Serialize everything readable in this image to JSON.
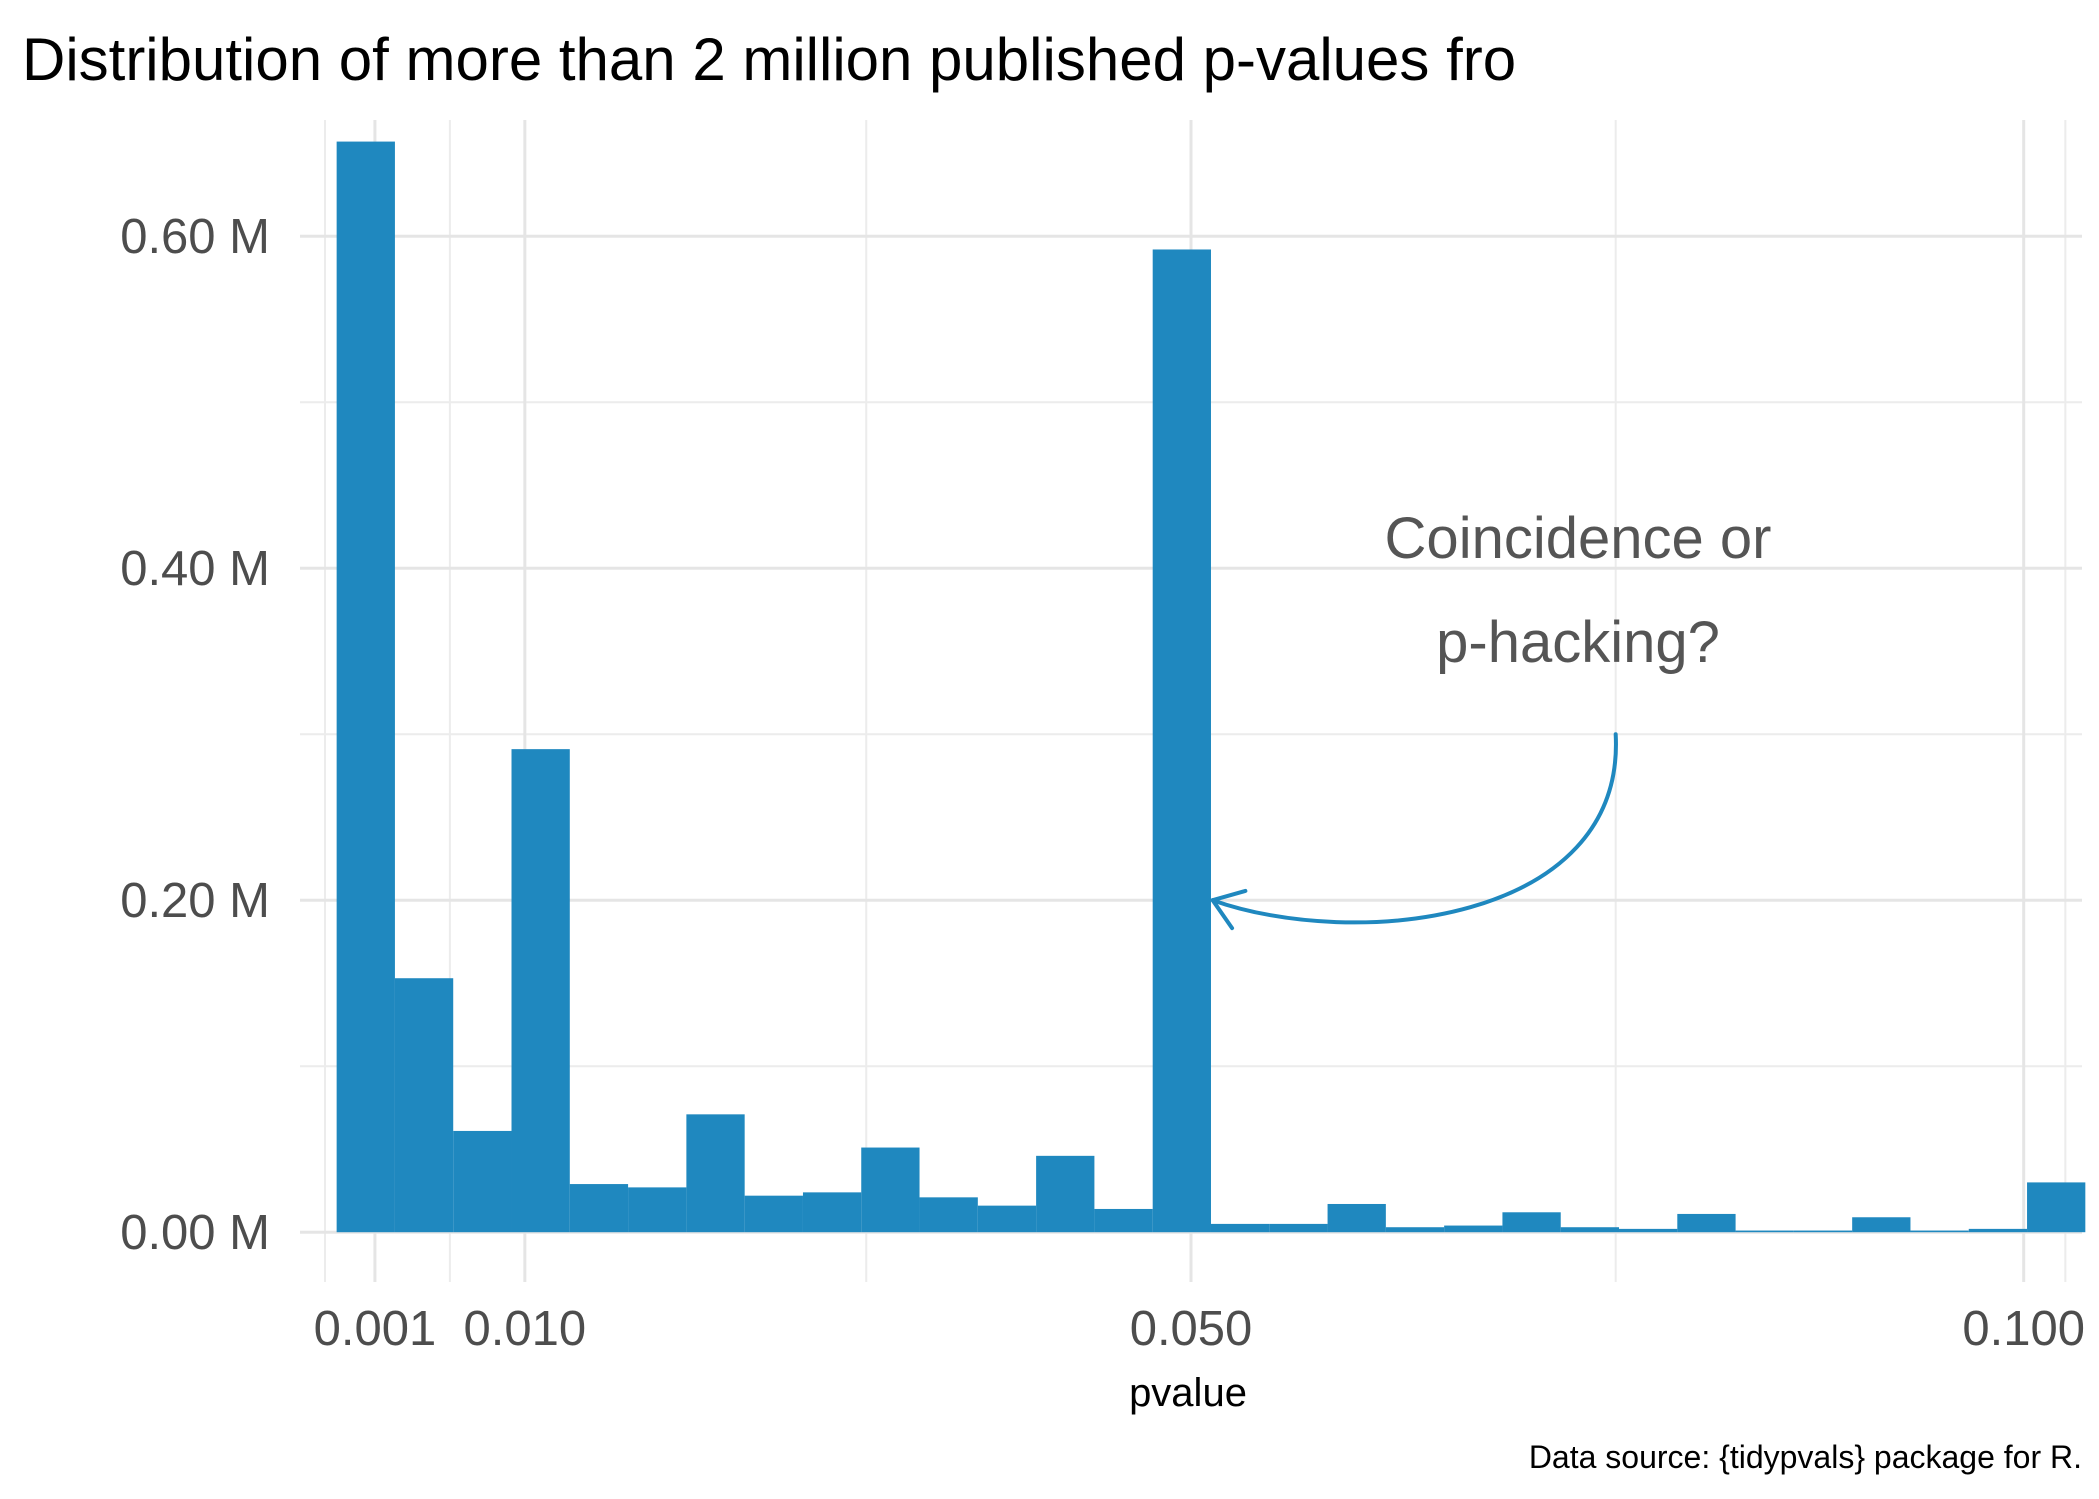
{
  "chart_data": {
    "type": "bar",
    "title": "Distribution of more than 2 million published p-values fro",
    "xlabel": "pvalue",
    "ylabel": "",
    "caption": "Data source: {tidypvals} package for R.",
    "annotation": [
      "Coincidence or",
      "p-hacking?"
    ],
    "bar_color": "#1f88bf",
    "grid": true,
    "xlim": [
      -0.0035,
      0.1035
    ],
    "ylim": [
      -0.03,
      0.67
    ],
    "x_major_breaks": [
      0.001,
      0.01,
      0.05,
      0.1
    ],
    "x_tick_labels": [
      "0.001",
      "0.010",
      "0.050",
      "0.100"
    ],
    "x_minor_breaks": [
      -0.002,
      0.0055,
      0.0305,
      0.0755,
      0.1025
    ],
    "y_major_breaks": [
      0,
      0.2,
      0.4,
      0.6
    ],
    "y_tick_labels": [
      "0.00 M",
      "0.20 M",
      "0.40 M",
      "0.60 M"
    ],
    "y_minor_breaks": [
      0.1,
      0.3,
      0.5
    ],
    "bin_width": 0.0035,
    "bins": [
      {
        "x0": -0.0013,
        "x1": 0.0022,
        "count": 0.657
      },
      {
        "x0": 0.0022,
        "x1": 0.0057,
        "count": 0.153
      },
      {
        "x0": 0.0057,
        "x1": 0.0092,
        "count": 0.061
      },
      {
        "x0": 0.0092,
        "x1": 0.0127,
        "count": 0.291
      },
      {
        "x0": 0.0127,
        "x1": 0.0162,
        "count": 0.029
      },
      {
        "x0": 0.0162,
        "x1": 0.0197,
        "count": 0.027
      },
      {
        "x0": 0.0197,
        "x1": 0.0232,
        "count": 0.071
      },
      {
        "x0": 0.0232,
        "x1": 0.0267,
        "count": 0.022
      },
      {
        "x0": 0.0267,
        "x1": 0.0302,
        "count": 0.024
      },
      {
        "x0": 0.0302,
        "x1": 0.0337,
        "count": 0.051
      },
      {
        "x0": 0.0337,
        "x1": 0.0372,
        "count": 0.021
      },
      {
        "x0": 0.0372,
        "x1": 0.0407,
        "count": 0.016
      },
      {
        "x0": 0.0407,
        "x1": 0.0442,
        "count": 0.046
      },
      {
        "x0": 0.0442,
        "x1": 0.0477,
        "count": 0.014
      },
      {
        "x0": 0.0477,
        "x1": 0.0512,
        "count": 0.592
      },
      {
        "x0": 0.0512,
        "x1": 0.0547,
        "count": 0.005
      },
      {
        "x0": 0.0547,
        "x1": 0.0582,
        "count": 0.005
      },
      {
        "x0": 0.0582,
        "x1": 0.0617,
        "count": 0.017
      },
      {
        "x0": 0.0617,
        "x1": 0.0652,
        "count": 0.003
      },
      {
        "x0": 0.0652,
        "x1": 0.0687,
        "count": 0.004
      },
      {
        "x0": 0.0687,
        "x1": 0.0722,
        "count": 0.012
      },
      {
        "x0": 0.0722,
        "x1": 0.0757,
        "count": 0.003
      },
      {
        "x0": 0.0757,
        "x1": 0.0792,
        "count": 0.002
      },
      {
        "x0": 0.0792,
        "x1": 0.0827,
        "count": 0.011
      },
      {
        "x0": 0.0827,
        "x1": 0.0862,
        "count": 0.001
      },
      {
        "x0": 0.0862,
        "x1": 0.0897,
        "count": 0.001
      },
      {
        "x0": 0.0897,
        "x1": 0.0932,
        "count": 0.009
      },
      {
        "x0": 0.0932,
        "x1": 0.0967,
        "count": 0.001
      },
      {
        "x0": 0.0967,
        "x1": 0.1002,
        "count": 0.002
      },
      {
        "x0": 0.1002,
        "x1": 0.1037,
        "count": 0.03
      }
    ],
    "arrow": {
      "from": {
        "x": 0.0755,
        "y": 0.3
      },
      "to": {
        "x": 0.0513,
        "y": 0.2
      },
      "color": "#1f88bf"
    }
  }
}
